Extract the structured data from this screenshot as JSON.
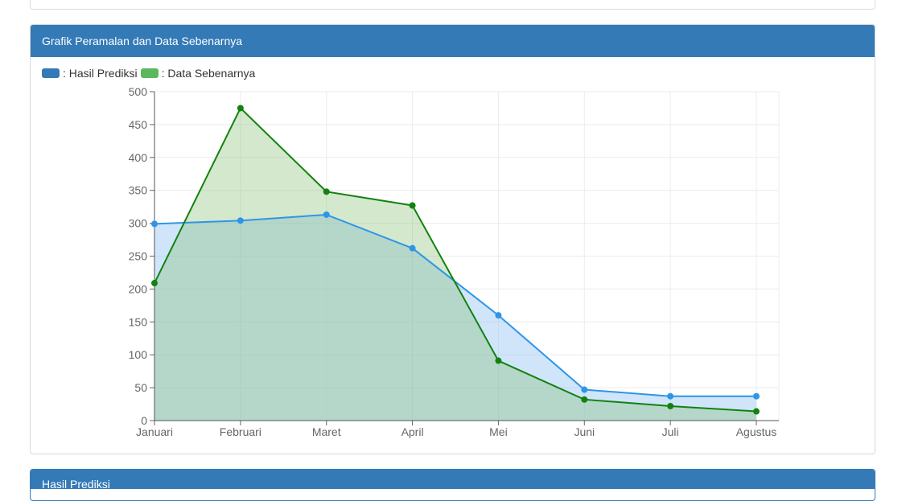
{
  "top_panel": {},
  "main_panel": {
    "title": "Grafik Peramalan dan Data Sebenarnya",
    "legend": [
      {
        "label": ": Hasil Prediksi",
        "color": "#337ab7"
      },
      {
        "label": ": Data Sebenarnya",
        "color": "#5cb85c"
      }
    ]
  },
  "bottom_panel": {
    "title": "Hasil Prediksi"
  },
  "chart_data": {
    "type": "area",
    "categories": [
      "Januari",
      "Februari",
      "Maret",
      "April",
      "Mei",
      "Juni",
      "Juli",
      "Agustus"
    ],
    "series": [
      {
        "name": "Hasil Prediksi",
        "color": "#2e95e8",
        "fill": "rgba(151,197,244,0.45)",
        "values": [
          299,
          304,
          313,
          262,
          160,
          47,
          37,
          37
        ]
      },
      {
        "name": "Data Sebenarnya",
        "color": "#12820e",
        "fill": "rgba(130,190,110,0.35)",
        "values": [
          209,
          475,
          348,
          327,
          91,
          32,
          22,
          14
        ]
      }
    ],
    "yticks": [
      0,
      50,
      100,
      150,
      200,
      250,
      300,
      350,
      400,
      450,
      500
    ],
    "ylim": [
      0,
      500
    ],
    "grid": true,
    "legend_position": "top-left"
  }
}
